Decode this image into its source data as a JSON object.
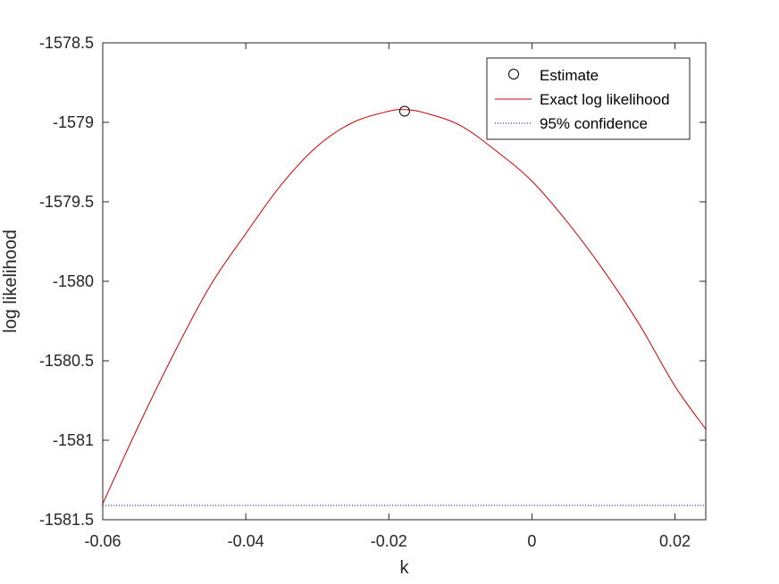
{
  "chart_data": {
    "type": "line",
    "xlabel": "k",
    "ylabel": "log likelihood",
    "xlim": [
      -0.06,
      0.0243
    ],
    "ylim": [
      -1581.5,
      -1578.5
    ],
    "xticks": [
      -0.06,
      -0.04,
      -0.02,
      0,
      0.02
    ],
    "xtick_labels": [
      "-0.06",
      "-0.04",
      "-0.02",
      "0",
      "0.02"
    ],
    "yticks": [
      -1581.5,
      -1581,
      -1580.5,
      -1580,
      -1579.5,
      -1579,
      -1578.5
    ],
    "ytick_labels": [
      "-1581.5",
      "-1581",
      "-1580.5",
      "-1580",
      "-1579.5",
      "-1579",
      "-1578.5"
    ],
    "grid": false,
    "legend_position": "top-right",
    "series": [
      {
        "name": "Estimate",
        "style": "marker-circle",
        "color": "#000000",
        "x": [
          -0.0178
        ],
        "y": [
          -1578.93
        ]
      },
      {
        "name": "Exact log likelihood",
        "style": "solid-line",
        "color": "#cc0000",
        "x": [
          -0.06,
          -0.055,
          -0.05,
          -0.045,
          -0.04,
          -0.035,
          -0.03,
          -0.025,
          -0.02,
          -0.0178,
          -0.015,
          -0.01,
          -0.005,
          0,
          0.005,
          0.01,
          0.015,
          0.02,
          0.0243
        ],
        "y": [
          -1581.4,
          -1580.91,
          -1580.45,
          -1580.03,
          -1579.7,
          -1579.39,
          -1579.15,
          -1579.0,
          -1578.93,
          -1578.92,
          -1578.94,
          -1579.02,
          -1579.18,
          -1579.37,
          -1579.63,
          -1579.93,
          -1580.27,
          -1580.66,
          -1580.93
        ]
      },
      {
        "name": "95% confidence",
        "style": "dotted-line",
        "color": "#0000cc",
        "x": [
          -0.06,
          0.0243
        ],
        "y": [
          -1581.41,
          -1581.41
        ]
      }
    ]
  }
}
